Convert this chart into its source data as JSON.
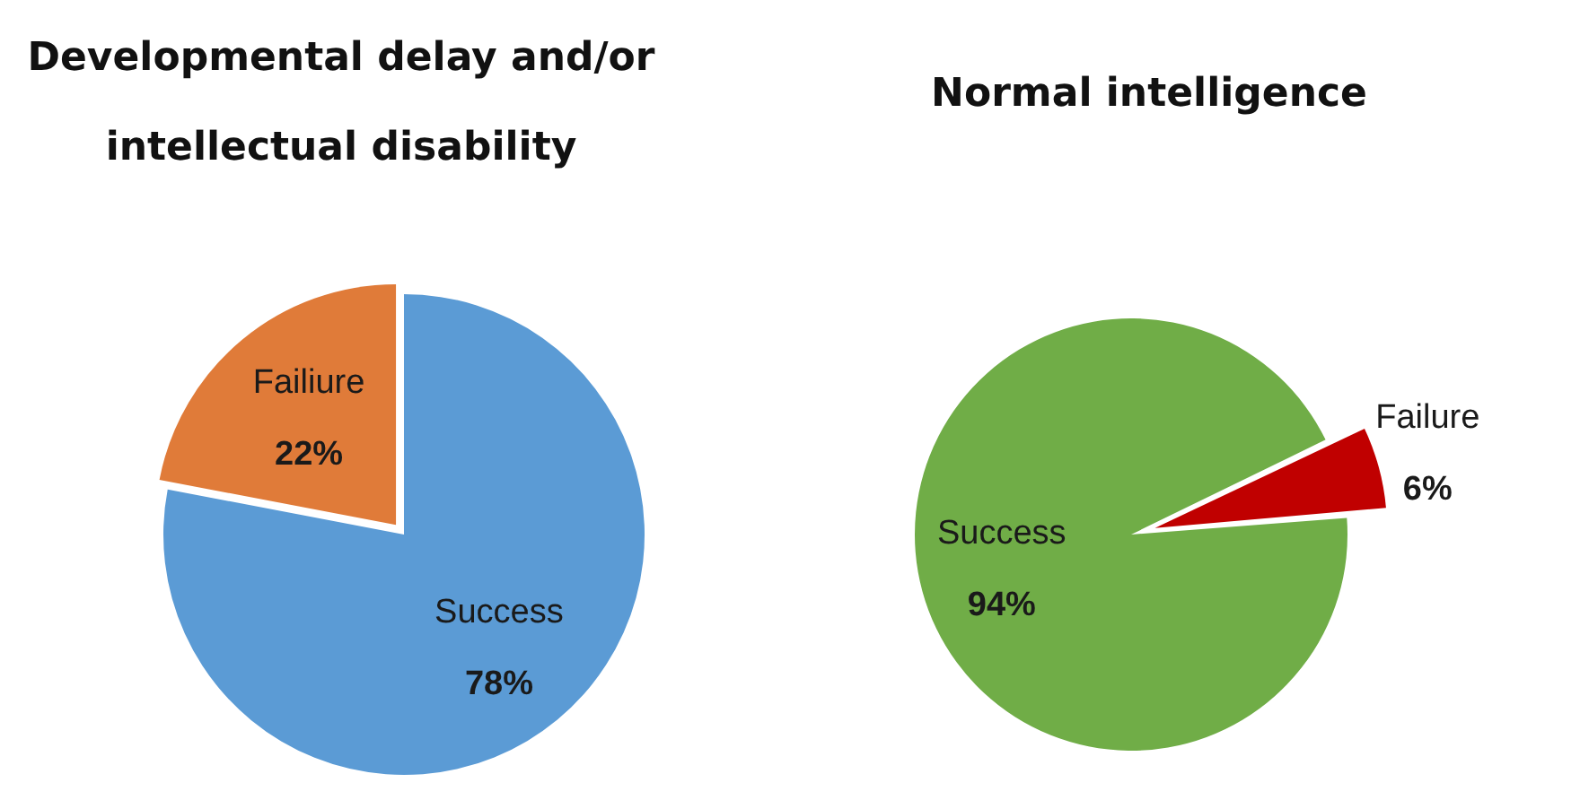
{
  "chart_data": [
    {
      "type": "pie",
      "title": "Developmental delay and/or intellectual disability",
      "categories": [
        "Failiure",
        "Success"
      ],
      "values": [
        22,
        78
      ],
      "colors": [
        "#e07b39",
        "#5b9bd5"
      ],
      "value_labels": [
        "22%",
        "78%"
      ],
      "legend": false
    },
    {
      "type": "pie",
      "title": "Normal intelligence",
      "categories": [
        "Failure",
        "Success"
      ],
      "values": [
        6,
        94
      ],
      "colors": [
        "#c00000",
        "#70ad47"
      ],
      "value_labels": [
        "6%",
        "94%"
      ],
      "legend": false
    }
  ]
}
